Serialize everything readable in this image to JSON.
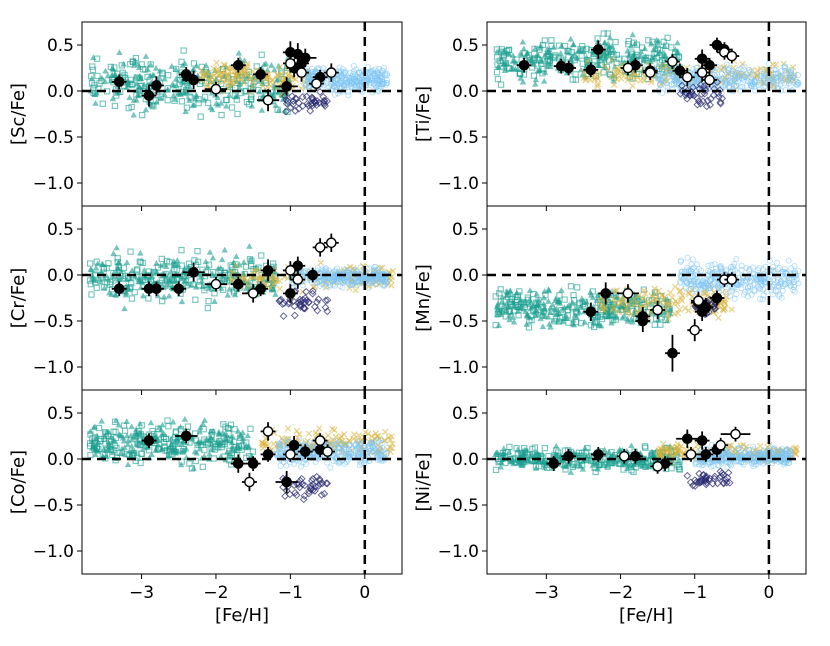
{
  "figure": {
    "xlabel": "[Fe/H]"
  },
  "colors": {
    "teal": "#1a9e8f",
    "gold": "#d9b23a",
    "lightblue": "#7ec4f2",
    "navy": "#27286e",
    "black": "#000000",
    "open": "#ffffff"
  },
  "chart_data": [
    {
      "type": "scatter",
      "ylabel": "[Sc/Fe]",
      "xlim": [
        -3.8,
        0.5
      ],
      "ylim": [
        -1.25,
        0.75
      ],
      "xticks": [
        -3,
        -2,
        -1,
        0
      ],
      "xtick_labels": [
        "−3",
        "−2",
        "−1",
        "0"
      ],
      "yticks": [
        0.5,
        0.0,
        -0.5,
        -1.0
      ],
      "ytick_labels": [
        "0.5",
        "0.0",
        "−0.5",
        "−1.0"
      ],
      "reference_lines": {
        "y": 0.0,
        "x": 0.0
      },
      "background": {
        "teal": {
          "x": [
            -3.7,
            -1.0
          ],
          "y": [
            -0.35,
            0.5
          ]
        },
        "gold": {
          "x": [
            -2.2,
            -0.7
          ],
          "y": [
            -0.05,
            0.35
          ]
        },
        "lightblue": {
          "x": [
            -0.8,
            0.3
          ],
          "y": [
            -0.05,
            0.3
          ]
        },
        "navy": {
          "x": [
            -1.1,
            -0.5
          ],
          "y": [
            -0.25,
            0.0
          ]
        }
      },
      "filled_points": [
        {
          "x": -3.3,
          "y": 0.1,
          "ex": 0.1,
          "ey": 0.08
        },
        {
          "x": -2.9,
          "y": -0.05,
          "ex": 0.1,
          "ey": 0.12
        },
        {
          "x": -2.8,
          "y": 0.06,
          "ex": 0.1,
          "ey": 0.1
        },
        {
          "x": -2.4,
          "y": 0.18,
          "ex": 0.1,
          "ey": 0.08
        },
        {
          "x": -2.3,
          "y": 0.12,
          "ex": 0.15,
          "ey": 0.1
        },
        {
          "x": -1.7,
          "y": 0.28,
          "ex": 0.1,
          "ey": 0.08
        },
        {
          "x": -1.4,
          "y": 0.18,
          "ex": 0.1,
          "ey": 0.08
        },
        {
          "x": -1.05,
          "y": 0.05,
          "ex": 0.15,
          "ey": 0.1
        },
        {
          "x": -1.0,
          "y": 0.42,
          "ex": 0.1,
          "ey": 0.12
        },
        {
          "x": -0.9,
          "y": 0.4,
          "ex": 0.1,
          "ey": 0.12
        },
        {
          "x": -0.95,
          "y": 0.25,
          "ex": 0.1,
          "ey": 0.1
        },
        {
          "x": -0.85,
          "y": 0.3,
          "ex": 0.1,
          "ey": 0.1
        },
        {
          "x": -0.8,
          "y": 0.36,
          "ex": 0.15,
          "ey": 0.1
        },
        {
          "x": -0.6,
          "y": 0.15,
          "ex": 0.1,
          "ey": 0.08
        }
      ],
      "open_points": [
        {
          "x": -2.0,
          "y": 0.02,
          "ex": 0.15,
          "ey": 0.08
        },
        {
          "x": -1.3,
          "y": -0.1,
          "ex": 0.15,
          "ey": 0.12
        },
        {
          "x": -1.0,
          "y": 0.3,
          "ex": 0.1,
          "ey": 0.1
        },
        {
          "x": -0.85,
          "y": 0.2,
          "ex": 0.1,
          "ey": 0.1
        },
        {
          "x": -0.65,
          "y": 0.08,
          "ex": 0.1,
          "ey": 0.08
        },
        {
          "x": -0.45,
          "y": 0.2,
          "ex": 0.1,
          "ey": 0.1
        }
      ]
    },
    {
      "type": "scatter",
      "ylabel": "[Ti/Fe]",
      "xlim": [
        -3.8,
        0.5
      ],
      "ylim": [
        -1.25,
        0.75
      ],
      "xticks": [
        -3,
        -2,
        -1,
        0
      ],
      "xtick_labels": [
        "−3",
        "−2",
        "−1",
        "0"
      ],
      "yticks": [
        0.5,
        0.0,
        -0.5,
        -1.0
      ],
      "ytick_labels": [
        "0.5",
        "0.0",
        "−0.5",
        "−1.0"
      ],
      "reference_lines": {
        "y": 0.0,
        "x": 0.0
      },
      "background": {
        "teal": {
          "x": [
            -3.7,
            -1.2
          ],
          "y": [
            0.05,
            0.65
          ]
        },
        "gold": {
          "x": [
            -2.5,
            0.4
          ],
          "y": [
            0.0,
            0.35
          ]
        },
        "lightblue": {
          "x": [
            -1.5,
            0.4
          ],
          "y": [
            -0.05,
            0.3
          ]
        },
        "navy": {
          "x": [
            -1.2,
            -0.6
          ],
          "y": [
            -0.2,
            0.1
          ]
        }
      },
      "filled_points": [
        {
          "x": -3.3,
          "y": 0.28,
          "ex": 0.1,
          "ey": 0.08
        },
        {
          "x": -2.8,
          "y": 0.27,
          "ex": 0.1,
          "ey": 0.08
        },
        {
          "x": -2.7,
          "y": 0.25,
          "ex": 0.1,
          "ey": 0.08
        },
        {
          "x": -2.4,
          "y": 0.23,
          "ex": 0.1,
          "ey": 0.08
        },
        {
          "x": -2.3,
          "y": 0.45,
          "ex": 0.1,
          "ey": 0.1
        },
        {
          "x": -1.8,
          "y": 0.28,
          "ex": 0.1,
          "ey": 0.08
        },
        {
          "x": -1.6,
          "y": 0.22,
          "ex": 0.1,
          "ey": 0.08
        },
        {
          "x": -1.2,
          "y": 0.22,
          "ex": 0.1,
          "ey": 0.08
        },
        {
          "x": -0.9,
          "y": 0.35,
          "ex": 0.1,
          "ey": 0.1
        },
        {
          "x": -0.8,
          "y": 0.28,
          "ex": 0.1,
          "ey": 0.08
        },
        {
          "x": -0.7,
          "y": 0.5,
          "ex": 0.1,
          "ey": 0.08
        },
        {
          "x": -0.6,
          "y": 0.45,
          "ex": 0.1,
          "ey": 0.08
        }
      ],
      "open_points": [
        {
          "x": -1.9,
          "y": 0.25,
          "ex": 0.1,
          "ey": 0.08
        },
        {
          "x": -1.6,
          "y": 0.2,
          "ex": 0.1,
          "ey": 0.08
        },
        {
          "x": -1.3,
          "y": 0.32,
          "ex": 0.1,
          "ey": 0.08
        },
        {
          "x": -1.1,
          "y": 0.15,
          "ex": 0.1,
          "ey": 0.1
        },
        {
          "x": -0.9,
          "y": 0.2,
          "ex": 0.1,
          "ey": 0.1
        },
        {
          "x": -0.8,
          "y": 0.12,
          "ex": 0.1,
          "ey": 0.08
        },
        {
          "x": -0.6,
          "y": 0.42,
          "ex": 0.1,
          "ey": 0.08
        },
        {
          "x": -0.5,
          "y": 0.38,
          "ex": 0.1,
          "ey": 0.08
        }
      ]
    },
    {
      "type": "scatter",
      "ylabel": "[Cr/Fe]",
      "xlim": [
        -3.8,
        0.5
      ],
      "ylim": [
        -1.25,
        0.75
      ],
      "xticks": [
        -3,
        -2,
        -1,
        0
      ],
      "xtick_labels": [
        "−3",
        "−2",
        "−1",
        "0"
      ],
      "yticks": [
        0.5,
        0.0,
        -0.5,
        -1.0
      ],
      "ytick_labels": [
        "0.5",
        "0.0",
        "−0.5",
        "−1.0"
      ],
      "reference_lines": {
        "y": 0.0,
        "x": 0.0
      },
      "background": {
        "teal": {
          "x": [
            -3.7,
            -1.2
          ],
          "y": [
            -0.35,
            0.3
          ]
        },
        "gold": {
          "x": [
            -1.8,
            0.4
          ],
          "y": [
            -0.2,
            0.15
          ]
        },
        "lightblue": {
          "x": [
            -1.0,
            0.3
          ],
          "y": [
            -0.15,
            0.1
          ]
        },
        "navy": {
          "x": [
            -1.2,
            -0.5
          ],
          "y": [
            -0.45,
            -0.15
          ]
        }
      },
      "filled_points": [
        {
          "x": -3.3,
          "y": -0.15,
          "ex": 0.1,
          "ey": 0.08
        },
        {
          "x": -2.9,
          "y": -0.15,
          "ex": 0.1,
          "ey": 0.08
        },
        {
          "x": -2.8,
          "y": -0.15,
          "ex": 0.1,
          "ey": 0.08
        },
        {
          "x": -2.5,
          "y": -0.15,
          "ex": 0.1,
          "ey": 0.08
        },
        {
          "x": -2.3,
          "y": 0.03,
          "ex": 0.15,
          "ey": 0.1
        },
        {
          "x": -1.7,
          "y": -0.1,
          "ex": 0.1,
          "ey": 0.08
        },
        {
          "x": -1.4,
          "y": -0.15,
          "ex": 0.1,
          "ey": 0.08
        },
        {
          "x": -1.3,
          "y": 0.05,
          "ex": 0.1,
          "ey": 0.12
        },
        {
          "x": -1.0,
          "y": -0.2,
          "ex": 0.1,
          "ey": 0.1
        },
        {
          "x": -0.9,
          "y": 0.1,
          "ex": 0.1,
          "ey": 0.1
        },
        {
          "x": -0.7,
          "y": 0.0,
          "ex": 0.1,
          "ey": 0.08
        }
      ],
      "open_points": [
        {
          "x": -2.0,
          "y": -0.1,
          "ex": 0.15,
          "ey": 0.08
        },
        {
          "x": -1.5,
          "y": -0.2,
          "ex": 0.15,
          "ey": 0.1
        },
        {
          "x": -1.0,
          "y": 0.05,
          "ex": 0.1,
          "ey": 0.1
        },
        {
          "x": -0.9,
          "y": -0.05,
          "ex": 0.1,
          "ey": 0.1
        },
        {
          "x": -0.6,
          "y": 0.3,
          "ex": 0.1,
          "ey": 0.1
        },
        {
          "x": -0.45,
          "y": 0.35,
          "ex": 0.1,
          "ey": 0.1
        }
      ]
    },
    {
      "type": "scatter",
      "ylabel": "[Mn/Fe]",
      "xlim": [
        -3.8,
        0.5
      ],
      "ylim": [
        -1.25,
        0.75
      ],
      "xticks": [
        -3,
        -2,
        -1,
        0
      ],
      "xtick_labels": [
        "−3",
        "−2",
        "−1",
        "0"
      ],
      "yticks": [
        0.5,
        0.0,
        -0.5,
        -1.0
      ],
      "ytick_labels": [
        "0.5",
        "0.0",
        "−0.5",
        "−1.0"
      ],
      "reference_lines": {
        "y": 0.0,
        "x": 0.0
      },
      "background": {
        "teal": {
          "x": [
            -3.7,
            -1.3
          ],
          "y": [
            -0.6,
            -0.1
          ]
        },
        "gold": {
          "x": [
            -2.3,
            -0.5
          ],
          "y": [
            -0.5,
            -0.1
          ]
        },
        "lightblue": {
          "x": [
            -1.2,
            0.4
          ],
          "y": [
            -0.3,
            0.2
          ]
        },
        "navy": {
          "x": [
            -1.0,
            -0.7
          ],
          "y": [
            -0.45,
            -0.2
          ]
        }
      },
      "filled_points": [
        {
          "x": -2.4,
          "y": -0.4,
          "ex": 0.1,
          "ey": 0.1
        },
        {
          "x": -2.2,
          "y": -0.2,
          "ex": 0.1,
          "ey": 0.12
        },
        {
          "x": -1.7,
          "y": -0.45,
          "ex": 0.1,
          "ey": 0.1
        },
        {
          "x": -1.7,
          "y": -0.5,
          "ex": 0.1,
          "ey": 0.12
        },
        {
          "x": -1.3,
          "y": -0.85,
          "ex": 0.1,
          "ey": 0.2
        },
        {
          "x": -0.95,
          "y": -0.3,
          "ex": 0.1,
          "ey": 0.1
        },
        {
          "x": -0.9,
          "y": -0.4,
          "ex": 0.1,
          "ey": 0.1
        },
        {
          "x": -0.85,
          "y": -0.35,
          "ex": 0.1,
          "ey": 0.1
        },
        {
          "x": -0.7,
          "y": -0.25,
          "ex": 0.1,
          "ey": 0.08
        }
      ],
      "open_points": [
        {
          "x": -1.9,
          "y": -0.2,
          "ex": 0.15,
          "ey": 0.1
        },
        {
          "x": -1.5,
          "y": -0.38,
          "ex": 0.1,
          "ey": 0.1
        },
        {
          "x": -1.0,
          "y": -0.6,
          "ex": 0.1,
          "ey": 0.12
        },
        {
          "x": -0.95,
          "y": -0.28,
          "ex": 0.1,
          "ey": 0.1
        },
        {
          "x": -0.6,
          "y": -0.05,
          "ex": 0.1,
          "ey": 0.08
        },
        {
          "x": -0.5,
          "y": -0.05,
          "ex": 0.1,
          "ey": 0.08
        }
      ]
    },
    {
      "type": "scatter",
      "ylabel": "[Co/Fe]",
      "xlim": [
        -3.8,
        0.5
      ],
      "ylim": [
        -1.25,
        0.75
      ],
      "xticks": [
        -3,
        -2,
        -1,
        0
      ],
      "xtick_labels": [
        "−3",
        "−2",
        "−1",
        "0"
      ],
      "yticks": [
        0.5,
        0.0,
        -0.5,
        -1.0
      ],
      "ytick_labels": [
        "0.5",
        "0.0",
        "−0.5",
        "−1.0"
      ],
      "reference_lines": {
        "y": 0.0,
        "x": 0.0
      },
      "background": {
        "teal": {
          "x": [
            -3.7,
            -1.5
          ],
          "y": [
            -0.1,
            0.45
          ]
        },
        "gold": {
          "x": [
            -1.4,
            0.4
          ],
          "y": [
            0.0,
            0.35
          ]
        },
        "lightblue": {
          "x": [
            -1.2,
            0.3
          ],
          "y": [
            -0.1,
            0.25
          ]
        },
        "navy": {
          "x": [
            -1.1,
            -0.5
          ],
          "y": [
            -0.45,
            -0.15
          ]
        }
      },
      "filled_points": [
        {
          "x": -2.9,
          "y": 0.2,
          "ex": 0.1,
          "ey": 0.08
        },
        {
          "x": -2.4,
          "y": 0.25,
          "ex": 0.15,
          "ey": 0.08
        },
        {
          "x": -1.7,
          "y": -0.05,
          "ex": 0.1,
          "ey": 0.1
        },
        {
          "x": -1.5,
          "y": -0.05,
          "ex": 0.1,
          "ey": 0.08
        },
        {
          "x": -1.3,
          "y": 0.05,
          "ex": 0.1,
          "ey": 0.08
        },
        {
          "x": -1.05,
          "y": -0.25,
          "ex": 0.15,
          "ey": 0.12
        },
        {
          "x": -0.95,
          "y": 0.15,
          "ex": 0.1,
          "ey": 0.1
        },
        {
          "x": -0.8,
          "y": 0.08,
          "ex": 0.1,
          "ey": 0.08
        },
        {
          "x": -0.6,
          "y": 0.1,
          "ex": 0.1,
          "ey": 0.08
        }
      ],
      "open_points": [
        {
          "x": -1.55,
          "y": -0.25,
          "ex": 0.1,
          "ey": 0.1
        },
        {
          "x": -1.3,
          "y": 0.3,
          "ex": 0.1,
          "ey": 0.1
        },
        {
          "x": -1.0,
          "y": 0.05,
          "ex": 0.1,
          "ey": 0.08
        },
        {
          "x": -0.6,
          "y": 0.2,
          "ex": 0.1,
          "ey": 0.08
        },
        {
          "x": -0.5,
          "y": 0.08,
          "ex": 0.1,
          "ey": 0.08
        }
      ]
    },
    {
      "type": "scatter",
      "ylabel": "[Ni/Fe]",
      "xlim": [
        -3.8,
        0.5
      ],
      "ylim": [
        -1.25,
        0.75
      ],
      "xticks": [
        -3,
        -2,
        -1,
        0
      ],
      "xtick_labels": [
        "−3",
        "−2",
        "−1",
        "0"
      ],
      "yticks": [
        0.5,
        0.0,
        -0.5,
        -1.0
      ],
      "ytick_labels": [
        "0.5",
        "0.0",
        "−0.5",
        "−1.0"
      ],
      "reference_lines": {
        "y": 0.0,
        "x": 0.0
      },
      "background": {
        "teal": {
          "x": [
            -3.7,
            -1.2
          ],
          "y": [
            -0.15,
            0.15
          ]
        },
        "gold": {
          "x": [
            -1.5,
            0.4
          ],
          "y": [
            -0.05,
            0.2
          ]
        },
        "lightblue": {
          "x": [
            -1.0,
            0.3
          ],
          "y": [
            -0.1,
            0.15
          ]
        },
        "navy": {
          "x": [
            -1.1,
            -0.5
          ],
          "y": [
            -0.35,
            -0.1
          ]
        }
      },
      "filled_points": [
        {
          "x": -2.9,
          "y": -0.05,
          "ex": 0.1,
          "ey": 0.08
        },
        {
          "x": -2.7,
          "y": 0.03,
          "ex": 0.1,
          "ey": 0.08
        },
        {
          "x": -2.3,
          "y": 0.05,
          "ex": 0.1,
          "ey": 0.08
        },
        {
          "x": -1.8,
          "y": 0.03,
          "ex": 0.1,
          "ey": 0.08
        },
        {
          "x": -1.4,
          "y": -0.05,
          "ex": 0.1,
          "ey": 0.08
        },
        {
          "x": -1.1,
          "y": 0.22,
          "ex": 0.15,
          "ey": 0.1
        },
        {
          "x": -0.9,
          "y": 0.2,
          "ex": 0.1,
          "ey": 0.1
        },
        {
          "x": -0.85,
          "y": 0.05,
          "ex": 0.1,
          "ey": 0.08
        },
        {
          "x": -0.7,
          "y": 0.1,
          "ex": 0.1,
          "ey": 0.08
        }
      ],
      "open_points": [
        {
          "x": -1.95,
          "y": 0.03,
          "ex": 0.1,
          "ey": 0.08
        },
        {
          "x": -1.5,
          "y": -0.08,
          "ex": 0.1,
          "ey": 0.08
        },
        {
          "x": -1.05,
          "y": 0.05,
          "ex": 0.1,
          "ey": 0.08
        },
        {
          "x": -0.65,
          "y": 0.15,
          "ex": 0.1,
          "ey": 0.08
        },
        {
          "x": -0.45,
          "y": 0.27,
          "ex": 0.2,
          "ey": 0.08
        }
      ]
    }
  ]
}
